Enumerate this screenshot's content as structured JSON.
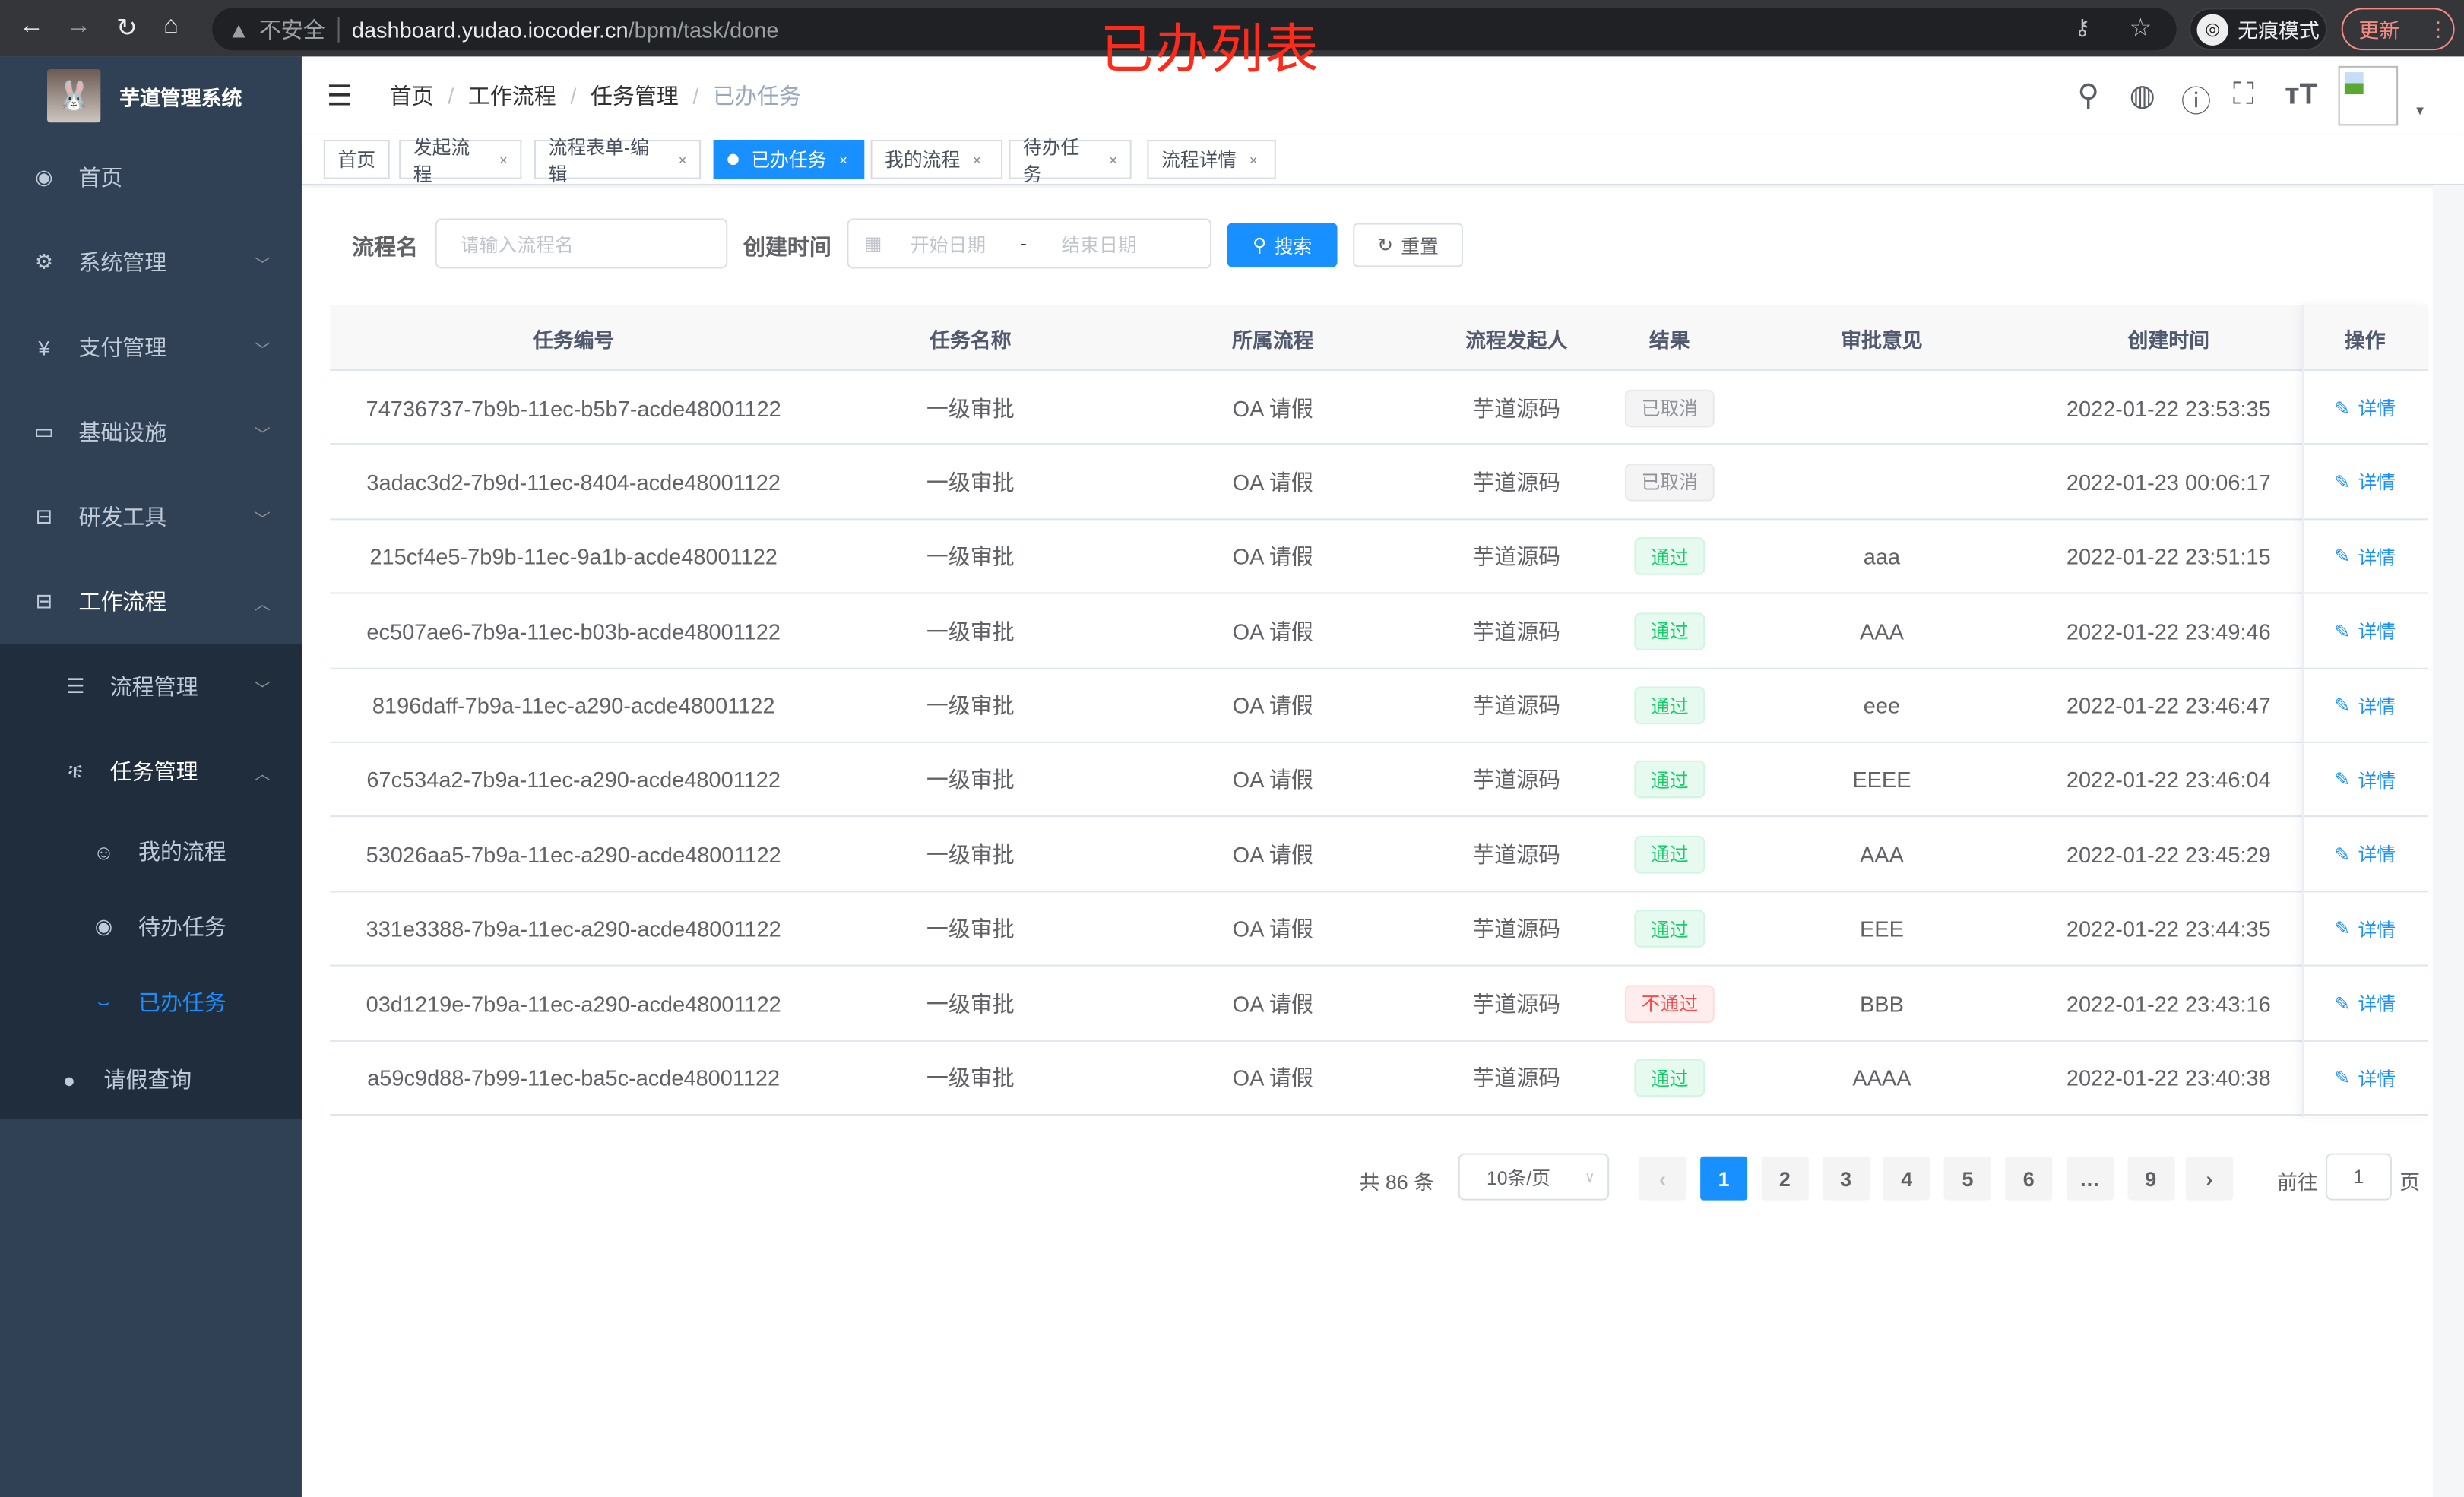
{
  "browser": {
    "url_host": "dashboard.yudao.iocoder.cn",
    "url_path": "/bpm/task/done",
    "security_label": "不安全",
    "incognito_label": "无痕模式",
    "update_label": "更新"
  },
  "overlay_title": "已办列表",
  "sidebar": {
    "app_title": "芋道管理系统",
    "items": [
      {
        "label": "首页",
        "icon": "dashboard-icon"
      },
      {
        "label": "系统管理",
        "icon": "gear-icon"
      },
      {
        "label": "支付管理",
        "icon": "yen-icon"
      },
      {
        "label": "基础设施",
        "icon": "monitor-icon"
      },
      {
        "label": "研发工具",
        "icon": "toolbox-icon"
      },
      {
        "label": "工作流程",
        "icon": "toolbox-icon"
      }
    ],
    "sub_items": [
      {
        "label": "流程管理",
        "icon": "list-icon"
      },
      {
        "label": "任务管理",
        "icon": "task-icon"
      }
    ],
    "task_items": [
      {
        "label": "我的流程",
        "icon": "face-icon"
      },
      {
        "label": "待办任务",
        "icon": "eye-open-icon"
      },
      {
        "label": "已办任务",
        "icon": "eye-closed-icon",
        "active": true
      }
    ],
    "leave_item": {
      "label": "请假查询",
      "icon": "user-icon"
    },
    "active_color": "#1890ff"
  },
  "breadcrumb": [
    "首页",
    "工作流程",
    "任务管理",
    "已办任务"
  ],
  "tags": [
    {
      "label": "首页"
    },
    {
      "label": "发起流程"
    },
    {
      "label": "流程表单-编辑"
    },
    {
      "label": "已办任务",
      "active": true
    },
    {
      "label": "我的流程"
    },
    {
      "label": "待办任务"
    },
    {
      "label": "流程详情"
    }
  ],
  "search": {
    "name_label": "流程名",
    "name_placeholder": "请输入流程名",
    "time_label": "创建时间",
    "start_placeholder": "开始日期",
    "range_sep": "-",
    "end_placeholder": "结束日期",
    "search_button": "搜索",
    "reset_button": "重置"
  },
  "table": {
    "columns": [
      "任务编号",
      "任务名称",
      "所属流程",
      "流程发起人",
      "结果",
      "审批意见",
      "创建时间",
      "操作"
    ],
    "action_label": "详情",
    "rows": [
      {
        "id": "74736737-7b9b-11ec-b5b7-acde48001122",
        "name": "一级审批",
        "process": "OA 请假",
        "starter": "芋道源码",
        "result": "已取消",
        "status": "cancel",
        "comment": "",
        "time": "2022-01-22 23:53:35"
      },
      {
        "id": "3adac3d2-7b9d-11ec-8404-acde48001122",
        "name": "一级审批",
        "process": "OA 请假",
        "starter": "芋道源码",
        "result": "已取消",
        "status": "cancel",
        "comment": "",
        "time": "2022-01-23 00:06:17"
      },
      {
        "id": "215cf4e5-7b9b-11ec-9a1b-acde48001122",
        "name": "一级审批",
        "process": "OA 请假",
        "starter": "芋道源码",
        "result": "通过",
        "status": "pass",
        "comment": "aaa",
        "time": "2022-01-22 23:51:15"
      },
      {
        "id": "ec507ae6-7b9a-11ec-b03b-acde48001122",
        "name": "一级审批",
        "process": "OA 请假",
        "starter": "芋道源码",
        "result": "通过",
        "status": "pass",
        "comment": "AAA",
        "time": "2022-01-22 23:49:46"
      },
      {
        "id": "8196daff-7b9a-11ec-a290-acde48001122",
        "name": "一级审批",
        "process": "OA 请假",
        "starter": "芋道源码",
        "result": "通过",
        "status": "pass",
        "comment": "eee",
        "time": "2022-01-22 23:46:47"
      },
      {
        "id": "67c534a2-7b9a-11ec-a290-acde48001122",
        "name": "一级审批",
        "process": "OA 请假",
        "starter": "芋道源码",
        "result": "通过",
        "status": "pass",
        "comment": "EEEE",
        "time": "2022-01-22 23:46:04"
      },
      {
        "id": "53026aa5-7b9a-11ec-a290-acde48001122",
        "name": "一级审批",
        "process": "OA 请假",
        "starter": "芋道源码",
        "result": "通过",
        "status": "pass",
        "comment": "AAA",
        "time": "2022-01-22 23:45:29"
      },
      {
        "id": "331e3388-7b9a-11ec-a290-acde48001122",
        "name": "一级审批",
        "process": "OA 请假",
        "starter": "芋道源码",
        "result": "通过",
        "status": "pass",
        "comment": "EEE",
        "time": "2022-01-22 23:44:35"
      },
      {
        "id": "03d1219e-7b9a-11ec-a290-acde48001122",
        "name": "一级审批",
        "process": "OA 请假",
        "starter": "芋道源码",
        "result": "不通过",
        "status": "reject",
        "comment": "BBB",
        "time": "2022-01-22 23:43:16"
      },
      {
        "id": "a59c9d88-7b99-11ec-ba5c-acde48001122",
        "name": "一级审批",
        "process": "OA 请假",
        "starter": "芋道源码",
        "result": "通过",
        "status": "pass",
        "comment": "AAAA",
        "time": "2022-01-22 23:40:38"
      }
    ],
    "status_colors": {
      "cancel": {
        "fg": "#909399",
        "bg": "#f4f4f5",
        "border": "#e9e9eb"
      },
      "pass": {
        "fg": "#13ce66",
        "bg": "#e7faf0",
        "border": "#d0f5e0"
      },
      "reject": {
        "fg": "#ff4949",
        "bg": "#ffeded",
        "border": "#ffdbdb"
      }
    }
  },
  "pagination": {
    "total_label": "共 86 条",
    "page_size": "10条/页",
    "pages": [
      "1",
      "2",
      "3",
      "4",
      "5",
      "6",
      "…",
      "9"
    ],
    "current": "1",
    "goto_label": "前往",
    "goto_value": "1",
    "goto_suffix": "页"
  }
}
